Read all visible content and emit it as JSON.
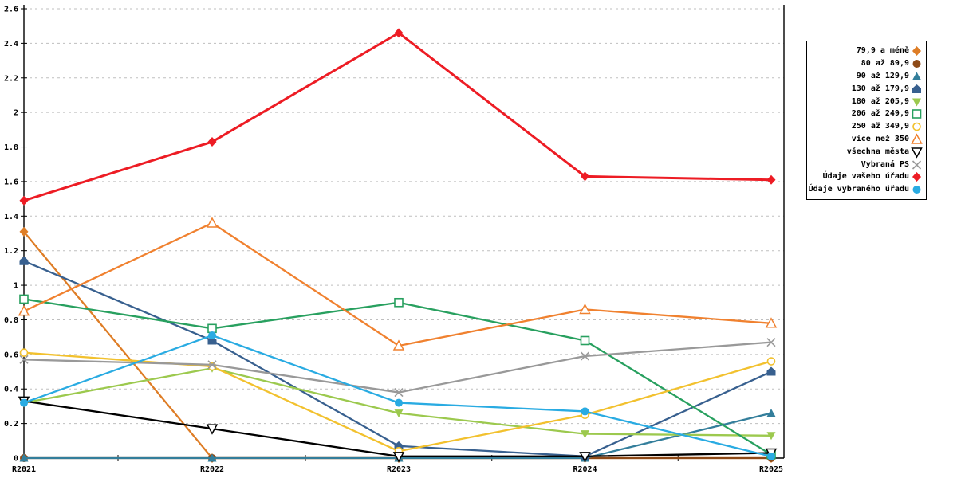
{
  "chart_data": {
    "type": "line",
    "title": "",
    "x_categories": [
      "R2021",
      "R2022",
      "R2023",
      "R2024",
      "R2025"
    ],
    "y_axis": {
      "min": 0,
      "max": 2.6,
      "step": 0.2,
      "tick_labels": [
        "0",
        "0.2",
        "0.4",
        "0.6",
        "0.8",
        "1",
        "1.2",
        "1.4",
        "1.6",
        "1.8",
        "2",
        "2.2",
        "2.4",
        "2.6"
      ]
    },
    "grid": {
      "horizontal": true,
      "style": "dashed",
      "color": "#BFBFBF"
    },
    "legend": {
      "position": "right",
      "border": true
    },
    "series": [
      {
        "name": "79,9 a méně",
        "color": "#DE7D26",
        "marker": "diamond-filled",
        "values": [
          1.31,
          0.0,
          0.0,
          0.0,
          0.0
        ]
      },
      {
        "name": "80 až 89,9",
        "color": "#8E4A17",
        "marker": "circle-filled",
        "values": [
          0.0,
          0.0,
          0.0,
          0.0,
          0.0
        ]
      },
      {
        "name": "90 až 129,9",
        "color": "#337E9B",
        "marker": "triangle-up-filled",
        "values": [
          0.0,
          0.0,
          0.0,
          0.0,
          0.26
        ]
      },
      {
        "name": "130 až 179,9",
        "color": "#38608F",
        "marker": "pentagon-filled",
        "values": [
          1.14,
          0.68,
          0.07,
          0.01,
          0.5
        ]
      },
      {
        "name": "180 až 205,9",
        "color": "#9CC94E",
        "marker": "triangle-down-filled",
        "values": [
          0.32,
          0.52,
          0.26,
          0.14,
          0.13
        ]
      },
      {
        "name": "206 až 249,9",
        "color": "#28A05F",
        "marker": "square-open",
        "values": [
          0.92,
          0.75,
          0.9,
          0.68,
          0.02
        ]
      },
      {
        "name": "250 až 349,9",
        "color": "#F2C12E",
        "marker": "circle-open",
        "values": [
          0.61,
          0.53,
          0.04,
          0.25,
          0.56
        ]
      },
      {
        "name": "více než 350",
        "color": "#F0812F",
        "marker": "triangle-up-open",
        "values": [
          0.85,
          1.36,
          0.65,
          0.86,
          0.78
        ]
      },
      {
        "name": "všechna města",
        "color": "#000000",
        "marker": "triangle-down-open",
        "values": [
          0.33,
          0.17,
          0.01,
          0.01,
          0.03
        ]
      },
      {
        "name": "Vybraná PS",
        "color": "#999999",
        "marker": "x",
        "values": [
          0.57,
          0.54,
          0.38,
          0.59,
          0.67
        ]
      },
      {
        "name": "Údaje vašeho úřadu",
        "color": "#ED1C24",
        "marker": "diamond-filled",
        "values": [
          1.49,
          1.83,
          2.46,
          1.63,
          1.61
        ]
      },
      {
        "name": "Údaje vybraného úřadu",
        "color": "#29ABE2",
        "marker": "circle-filled",
        "values": [
          0.32,
          0.71,
          0.32,
          0.27,
          0.01
        ]
      }
    ]
  }
}
